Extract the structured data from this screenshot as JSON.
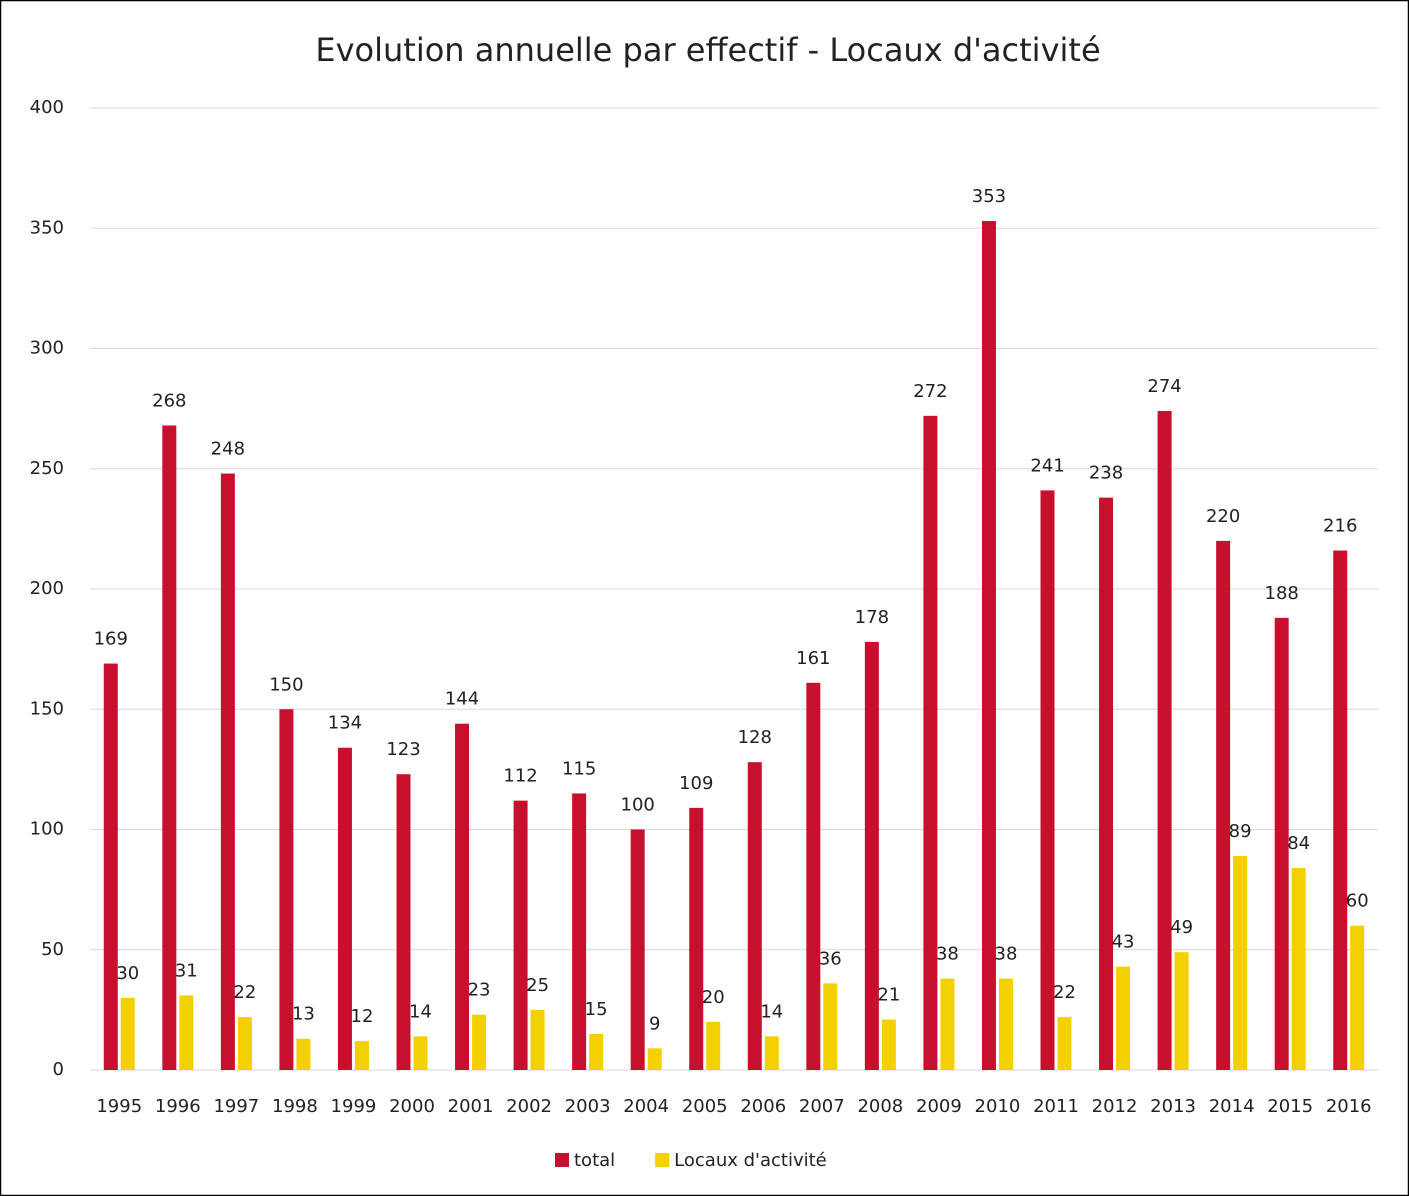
{
  "chart_data": {
    "type": "bar",
    "title": "Evolution annuelle par effectif - Locaux d'activité",
    "categories": [
      "1995",
      "1996",
      "1997",
      "1998",
      "1999",
      "2000",
      "2001",
      "2002",
      "2003",
      "2004",
      "2005",
      "2006",
      "2007",
      "2008",
      "2009",
      "2010",
      "2011",
      "2012",
      "2013",
      "2014",
      "2015",
      "2016"
    ],
    "series": [
      {
        "name": "total",
        "color": "#c8102e",
        "values": [
          169,
          268,
          248,
          150,
          134,
          123,
          144,
          112,
          115,
          100,
          109,
          128,
          161,
          178,
          272,
          353,
          241,
          238,
          274,
          220,
          188,
          216
        ]
      },
      {
        "name": "Locaux d'activité",
        "color": "#f5d000",
        "values": [
          30,
          31,
          22,
          13,
          12,
          14,
          23,
          25,
          15,
          9,
          20,
          14,
          36,
          21,
          38,
          38,
          22,
          43,
          49,
          89,
          84,
          60
        ]
      }
    ],
    "ylim": [
      0,
      400
    ],
    "yticks": [
      0,
      50,
      100,
      150,
      200,
      250,
      300,
      350,
      400
    ],
    "grid": true,
    "legend": "bottom"
  }
}
